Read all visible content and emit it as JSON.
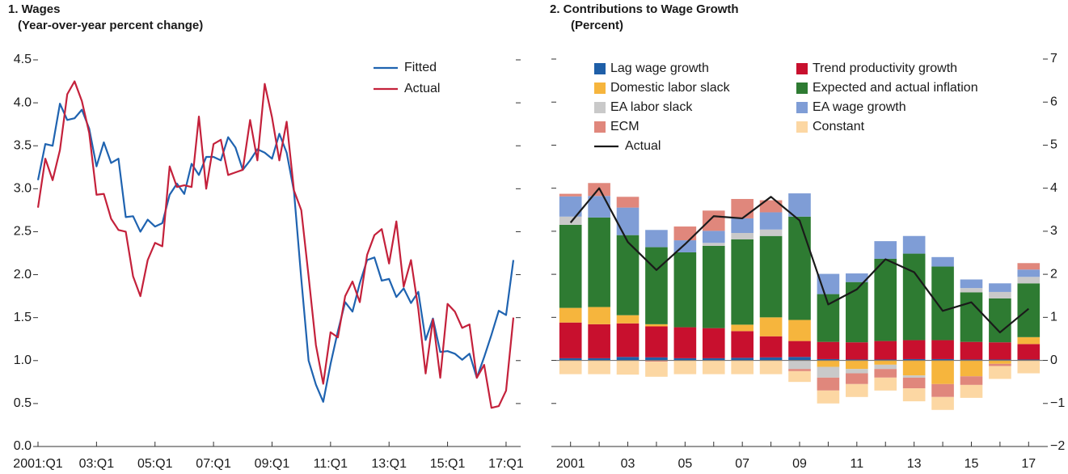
{
  "chart_data": [
    {
      "type": "line",
      "title": "1. Wages",
      "subtitle": "(Year-over-year percent change)",
      "legend": "upper right",
      "categories": [
        "2001:Q1",
        null,
        null,
        null,
        null,
        null,
        null,
        null,
        "03:Q1",
        null,
        null,
        null,
        null,
        null,
        null,
        null,
        "05:Q1",
        null,
        null,
        null,
        null,
        null,
        null,
        null,
        "07:Q1",
        null,
        null,
        null,
        null,
        null,
        null,
        null,
        "09:Q1",
        null,
        null,
        null,
        null,
        null,
        null,
        null,
        "11:Q1",
        null,
        null,
        null,
        null,
        null,
        null,
        null,
        "13:Q1",
        null,
        null,
        null,
        null,
        null,
        null,
        null,
        "15:Q1",
        null,
        null,
        null,
        null,
        null,
        null,
        null,
        "17:Q1",
        null
      ],
      "ylim": [
        0,
        4.5
      ],
      "yticks": [
        {
          "value": 0,
          "label": "0.0"
        },
        0.5,
        {
          "value": 1,
          "label": "1.0"
        },
        1.5,
        {
          "value": 2,
          "label": "2.0"
        },
        2.5,
        {
          "value": 3,
          "label": "3.0"
        },
        3.5,
        {
          "value": 4,
          "label": "4.0"
        },
        4.5
      ],
      "series": [
        {
          "name": "Fitted",
          "color": "#1f63b0",
          "values": [
            3.1,
            3.52,
            3.5,
            3.99,
            3.8,
            3.82,
            3.92,
            3.7,
            3.26,
            3.54,
            3.3,
            3.35,
            2.67,
            2.68,
            2.5,
            2.64,
            2.56,
            2.6,
            2.93,
            3.06,
            2.94,
            3.29,
            3.16,
            3.37,
            3.37,
            3.33,
            3.6,
            3.48,
            3.22,
            3.33,
            3.46,
            3.42,
            3.35,
            3.64,
            3.42,
            2.97,
            1.95,
            1.0,
            0.72,
            0.52,
            0.96,
            1.34,
            1.68,
            1.57,
            1.9,
            2.17,
            2.2,
            1.93,
            1.95,
            1.74,
            1.84,
            1.67,
            1.8,
            1.24,
            1.49,
            1.1,
            1.11,
            1.08,
            1.01,
            1.08,
            0.8,
            1.04,
            1.3,
            1.58,
            1.53,
            2.17
          ]
        },
        {
          "name": "Actual",
          "color": "#c4213b",
          "values": [
            2.78,
            3.35,
            3.1,
            3.45,
            4.1,
            4.25,
            4.02,
            3.65,
            2.93,
            2.94,
            2.65,
            2.52,
            2.5,
            1.98,
            1.75,
            2.17,
            2.37,
            2.33,
            3.26,
            3.02,
            3.04,
            3.02,
            3.84,
            3.0,
            3.52,
            3.57,
            3.16,
            3.19,
            3.22,
            3.8,
            3.33,
            4.22,
            3.83,
            3.33,
            3.78,
            2.98,
            2.75,
            1.98,
            1.18,
            0.73,
            1.33,
            1.27,
            1.75,
            1.92,
            1.68,
            2.23,
            2.46,
            2.53,
            2.13,
            2.62,
            1.86,
            2.17,
            1.6,
            0.85,
            1.48,
            0.8,
            1.66,
            1.57,
            1.38,
            1.42,
            0.8,
            0.95,
            0.45,
            0.47,
            0.65,
            1.5
          ]
        }
      ]
    },
    {
      "type": "bar",
      "stacked": true,
      "title": "2. Contributions to Wage Growth",
      "subtitle": "(Percent)",
      "legend": "upper center",
      "categories": [
        "2001",
        null,
        "03",
        null,
        "05",
        null,
        "07",
        null,
        "09",
        null,
        "11",
        null,
        "13",
        null,
        "15",
        null,
        "17"
      ],
      "ylim": [
        -2,
        7
      ],
      "yticks": [
        {
          "value": -2,
          "label": "−2"
        },
        {
          "value": -1,
          "label": "−1"
        },
        0,
        1,
        2,
        3,
        4,
        5,
        6,
        7
      ],
      "series": [
        {
          "name": "Lag wage growth",
          "color": "#1f5fa8",
          "values": [
            0.05,
            0.05,
            0.08,
            0.07,
            0.05,
            0.05,
            0.06,
            0.07,
            0.08,
            0.03,
            0.02,
            0.02,
            0.03,
            0.03,
            0.02,
            0.02,
            0.02
          ]
        },
        {
          "name": "Trend productivity growth",
          "color": "#c8102e",
          "values": [
            0.83,
            0.79,
            0.78,
            0.72,
            0.72,
            0.7,
            0.62,
            0.49,
            0.37,
            0.4,
            0.4,
            0.43,
            0.44,
            0.44,
            0.41,
            0.4,
            0.36
          ]
        },
        {
          "name": "Domestic labor slack",
          "color": "#f6b53d",
          "values": [
            0.34,
            0.4,
            0.19,
            0.05,
            0,
            0,
            0.15,
            0.44,
            0.49,
            -0.15,
            -0.2,
            -0.1,
            -0.35,
            -0.55,
            -0.37,
            -0.08,
            0.16
          ]
        },
        {
          "name": "Expected and actual inflation",
          "color": "#2e7b32",
          "values": [
            1.93,
            2.08,
            1.86,
            1.79,
            1.74,
            1.91,
            1.98,
            1.89,
            2.4,
            1.11,
            1.4,
            1.91,
            2.01,
            1.71,
            1.15,
            1.02,
            1.25
          ]
        },
        {
          "name": "EA labor slack",
          "color": "#c9c9c9",
          "values": [
            0.19,
            0,
            0,
            0,
            0,
            0.07,
            0.15,
            0.15,
            -0.2,
            -0.25,
            -0.1,
            -0.1,
            -0.05,
            0,
            0.1,
            0.15,
            0.15
          ]
        },
        {
          "name": "EA wage growth",
          "color": "#7f9dd6",
          "values": [
            0.47,
            0.5,
            0.64,
            0.4,
            0.28,
            0.28,
            0.34,
            0.4,
            0.54,
            0.47,
            0.2,
            0.41,
            0.41,
            0.22,
            0.2,
            0.2,
            0.17
          ]
        },
        {
          "name": "ECM",
          "color": "#e0877c",
          "values": [
            0.06,
            0.3,
            0.25,
            -0.03,
            0.32,
            0.47,
            0.45,
            0.28,
            -0.05,
            -0.3,
            -0.25,
            -0.2,
            -0.25,
            -0.3,
            -0.2,
            -0.05,
            0.15
          ]
        },
        {
          "name": "Constant",
          "color": "#fcd7a3",
          "values": [
            -0.32,
            -0.32,
            -0.33,
            -0.35,
            -0.32,
            -0.32,
            -0.32,
            -0.32,
            -0.25,
            -0.3,
            -0.3,
            -0.3,
            -0.3,
            -0.3,
            -0.3,
            -0.3,
            -0.3
          ]
        },
        {
          "name": "Actual",
          "type": "line",
          "color": "#1a1a1a",
          "values": [
            3.2,
            4.0,
            2.75,
            2.1,
            2.7,
            3.35,
            3.3,
            3.8,
            3.25,
            1.3,
            1.65,
            2.35,
            2.05,
            1.15,
            1.35,
            0.65,
            1.2
          ]
        }
      ]
    }
  ]
}
